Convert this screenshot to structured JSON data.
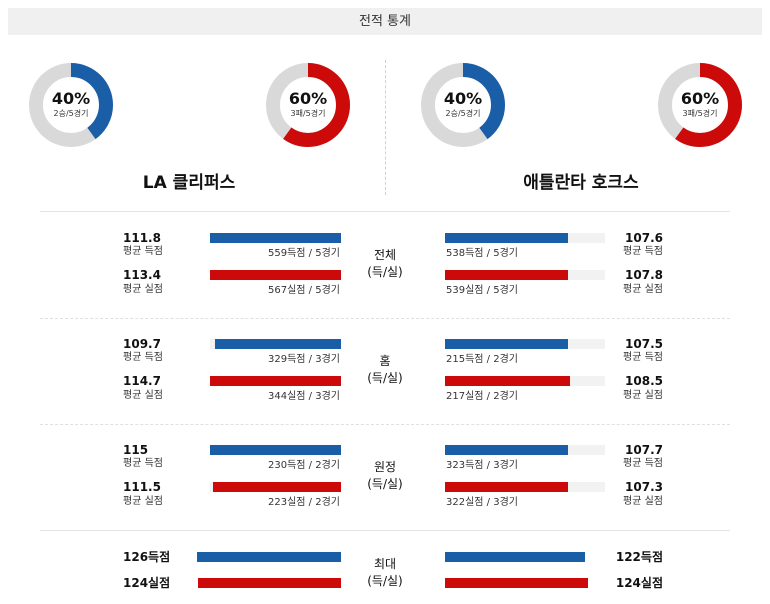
{
  "header": {
    "title": "전적 통계"
  },
  "colors": {
    "blue": "#1a5ea8",
    "red": "#cc0a0a",
    "track": "#f2f2f2",
    "ring_bg": "#d9d9d9"
  },
  "teams": {
    "left": {
      "name": "LA 클리퍼스",
      "donuts": [
        {
          "pct": "40%",
          "sub": "2승/5경기",
          "fraction": 0.4,
          "color": "blue"
        },
        {
          "pct": "60%",
          "sub": "3패/5경기",
          "fraction": 0.6,
          "color": "red"
        }
      ]
    },
    "right": {
      "name": "애틀란타 호크스",
      "donuts": [
        {
          "pct": "40%",
          "sub": "2승/5경기",
          "fraction": 0.4,
          "color": "blue"
        },
        {
          "pct": "60%",
          "sub": "3패/5경기",
          "fraction": 0.6,
          "color": "red"
        }
      ]
    }
  },
  "sections": [
    {
      "label1": "전체",
      "label2": "(득/실)",
      "left": {
        "for": {
          "value": "111.8",
          "caption": "평균 득점",
          "note": "559득점 / 5경기",
          "fraction": 1.0
        },
        "against": {
          "value": "113.4",
          "caption": "평균 실점",
          "note": "567실점 / 5경기",
          "fraction": 1.0
        }
      },
      "right": {
        "for": {
          "value": "107.6",
          "caption": "평균 득점",
          "note": "538득점 / 5경기",
          "fraction": 0.77
        },
        "against": {
          "value": "107.8",
          "caption": "평균 실점",
          "note": "539실점 / 5경기",
          "fraction": 0.77
        }
      }
    },
    {
      "label1": "홈",
      "label2": "(득/실)",
      "left": {
        "for": {
          "value": "109.7",
          "caption": "평균 득점",
          "note": "329득점 / 3경기",
          "fraction": 0.96
        },
        "against": {
          "value": "114.7",
          "caption": "평균 실점",
          "note": "344실점 / 3경기",
          "fraction": 1.0
        }
      },
      "right": {
        "for": {
          "value": "107.5",
          "caption": "평균 득점",
          "note": "215득점 / 2경기",
          "fraction": 0.77
        },
        "against": {
          "value": "108.5",
          "caption": "평균 실점",
          "note": "217실점 / 2경기",
          "fraction": 0.78
        }
      }
    },
    {
      "label1": "원정",
      "label2": "(득/실)",
      "left": {
        "for": {
          "value": "115",
          "caption": "평균 득점",
          "note": "230득점 / 2경기",
          "fraction": 1.0
        },
        "against": {
          "value": "111.5",
          "caption": "평균 실점",
          "note": "223실점 / 2경기",
          "fraction": 0.98
        }
      },
      "right": {
        "for": {
          "value": "107.7",
          "caption": "평균 득점",
          "note": "323득점 / 3경기",
          "fraction": 0.77
        },
        "against": {
          "value": "107.3",
          "caption": "평균 실점",
          "note": "322실점 / 3경기",
          "fraction": 0.77
        }
      }
    }
  ],
  "max_section": {
    "label1": "최대",
    "label2": "(득/실)",
    "left": {
      "for": "126득점",
      "against": "124실점"
    },
    "right": {
      "for": "122득점",
      "against": "124실점"
    }
  }
}
